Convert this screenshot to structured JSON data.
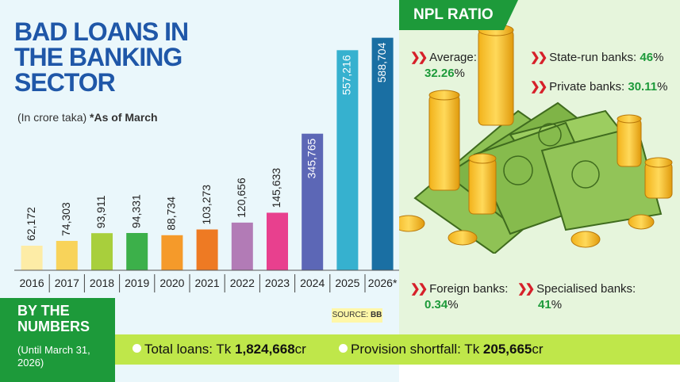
{
  "title": "BAD LOANS IN THE BANKING SECTOR",
  "subtitle_prefix": "(In crore taka)",
  "subtitle_note": "*As of March",
  "source": {
    "label": "SOURCE:",
    "value": "BB"
  },
  "chart_data": {
    "type": "bar",
    "categories": [
      "2016",
      "2017",
      "2018",
      "2019",
      "2020",
      "2021",
      "2022",
      "2023",
      "2024",
      "2025",
      "2026*"
    ],
    "values": [
      62172,
      74303,
      93911,
      94331,
      88734,
      103273,
      120656,
      145633,
      345765,
      557216,
      588704
    ],
    "value_labels": [
      "62,172",
      "74,303",
      "93,911",
      "94,331",
      "88,734",
      "103,273",
      "120,656",
      "145,633",
      "345,765",
      "557,216",
      "588,704"
    ],
    "colors": [
      "#fdeca6",
      "#f8d35a",
      "#a8cf3c",
      "#3cb04a",
      "#f59a2a",
      "#ee7a23",
      "#b27bb6",
      "#e8408e",
      "#5c67b6",
      "#36b1cf",
      "#1a6fa3"
    ],
    "ylim": [
      0,
      600000
    ]
  },
  "by_the_numbers": {
    "title": "BY THE NUMBERS",
    "note": "(Until March 31, 2026)"
  },
  "totals": {
    "total_loans_label": "Total loans: Tk ",
    "total_loans_value": "1,824,668",
    "total_loans_unit": "cr",
    "shortfall_label": "Provision shortfall: Tk ",
    "shortfall_value": "205,665",
    "shortfall_unit": "cr"
  },
  "npl": {
    "heading": "NPL RATIO",
    "average_label": "Average:",
    "average_value": "32.26",
    "state_label": "State-run banks: ",
    "state_value": "46",
    "private_label": "Private banks: ",
    "private_value": "30.11",
    "foreign_label": "Foreign banks:",
    "foreign_value": "0.34",
    "specialised_label": "Specialised banks:",
    "specialised_value": "41",
    "percent_sign": "%"
  },
  "icons": {
    "chevron": "double-chevron-right-icon",
    "bullet": "dot-icon",
    "illustration": "money-stack-icon"
  },
  "chevron_glyph": "❯❯"
}
